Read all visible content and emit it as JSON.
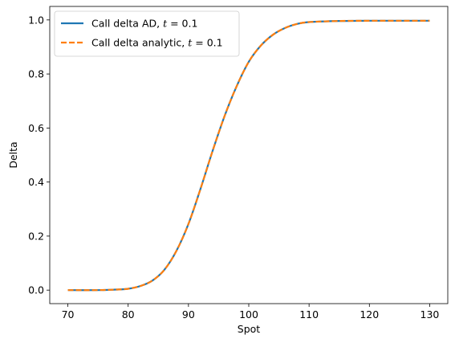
{
  "chart_data": {
    "type": "line",
    "xlabel": "Spot",
    "ylabel": "Delta",
    "xlim": [
      67,
      133
    ],
    "ylim": [
      -0.05,
      1.05
    ],
    "x_ticks": [
      70,
      80,
      90,
      100,
      110,
      120,
      130
    ],
    "y_ticks": [
      0.0,
      0.2,
      0.4,
      0.6,
      0.8,
      1.0
    ],
    "x_tick_labels": [
      "70",
      "80",
      "90",
      "100",
      "110",
      "120",
      "130"
    ],
    "y_tick_labels": [
      "0.0",
      "0.2",
      "0.4",
      "0.6",
      "0.8",
      "1.0"
    ],
    "grid": false,
    "legend_position": "top-left",
    "x": [
      70,
      75,
      78,
      80,
      82,
      84,
      86,
      88,
      90,
      92,
      94,
      96,
      98,
      100,
      102,
      104,
      106,
      108,
      110,
      115,
      120,
      125,
      130
    ],
    "series": [
      {
        "name": "Call delta AD, t = 0.1",
        "legend_prefix": "Call delta AD, ",
        "legend_var": "t",
        "legend_suffix": " = 0.1",
        "color": "#1f77b4",
        "style": "solid",
        "values": [
          0.0,
          0.0,
          0.002,
          0.005,
          0.015,
          0.035,
          0.075,
          0.145,
          0.245,
          0.375,
          0.515,
          0.645,
          0.755,
          0.845,
          0.905,
          0.945,
          0.97,
          0.985,
          0.992,
          0.996,
          0.997,
          0.997,
          0.997
        ]
      },
      {
        "name": "Call delta analytic, t = 0.1",
        "legend_prefix": "Call delta analytic, ",
        "legend_var": "t",
        "legend_suffix": " = 0.1",
        "color": "#ff7f0e",
        "style": "dashed",
        "values": [
          0.0,
          0.0,
          0.002,
          0.005,
          0.015,
          0.035,
          0.075,
          0.145,
          0.245,
          0.375,
          0.515,
          0.645,
          0.755,
          0.845,
          0.905,
          0.945,
          0.97,
          0.985,
          0.992,
          0.996,
          0.997,
          0.997,
          0.997
        ]
      }
    ]
  }
}
